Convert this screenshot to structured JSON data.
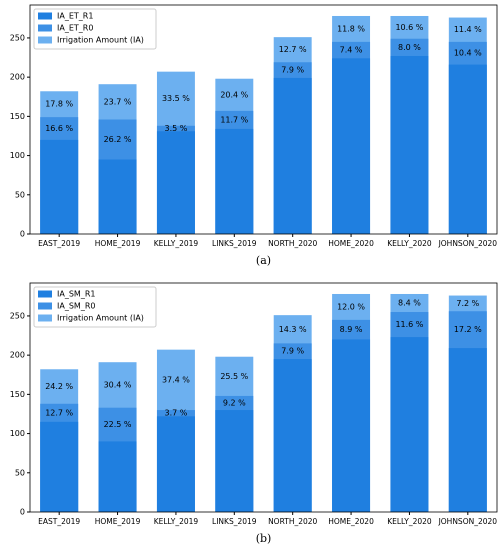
{
  "chart_data": [
    {
      "type": "bar",
      "caption": "(a)",
      "categories": [
        "EAST_2019",
        "HOME_2019",
        "KELLY_2019",
        "LINKS_2019",
        "NORTH_2020",
        "HOME_2020",
        "KELLY_2020",
        "JOHNSON_2020"
      ],
      "series": [
        {
          "name": "IA_ET_R1",
          "color": "#1f7fe0",
          "values": [
            120,
            95,
            131,
            134,
            199,
            224,
            227,
            216
          ]
        },
        {
          "name": "IA_ET_R0",
          "color": "#3d90e5",
          "values": [
            149,
            146,
            138,
            157,
            219,
            245,
            249,
            245
          ],
          "gap_labels": [
            "16.6 %",
            "26.2 %",
            "3.5 %",
            "11.7 %",
            "7.9 %",
            "7.4 %",
            "8.0 %",
            "10.4 %"
          ]
        },
        {
          "name": "Irrigation Amount (IA)",
          "color": "#6cb0f0",
          "values": [
            182,
            191,
            207,
            198,
            251,
            278,
            278,
            276
          ],
          "gap_labels": [
            "17.8 %",
            "23.7 %",
            "33.5 %",
            "20.4 %",
            "12.7 %",
            "11.8 %",
            "10.6 %",
            "11.4 %"
          ]
        }
      ],
      "ylim": [
        0,
        292
      ],
      "yticks": [
        0,
        50,
        100,
        150,
        200,
        250
      ],
      "legend": "upper left"
    },
    {
      "type": "bar",
      "caption": "(b)",
      "categories": [
        "EAST_2019",
        "HOME_2019",
        "KELLY_2019",
        "LINKS_2019",
        "NORTH_2020",
        "HOME_2020",
        "KELLY_2020",
        "JOHNSON_2020"
      ],
      "series": [
        {
          "name": "IA_SM_R1",
          "color": "#1f7fe0",
          "values": [
            115,
            90,
            122,
            130,
            195,
            220,
            223,
            209
          ]
        },
        {
          "name": "IA_SM_R0",
          "color": "#3d90e5",
          "values": [
            138,
            133,
            130,
            148,
            215,
            245,
            255,
            256
          ],
          "gap_labels": [
            "12.7 %",
            "22.5 %",
            "3.7 %",
            "9.2 %",
            "7.9 %",
            "8.9 %",
            "11.6 %",
            "17.2 %"
          ]
        },
        {
          "name": "Irrigation Amount (IA)",
          "color": "#6cb0f0",
          "values": [
            182,
            191,
            207,
            198,
            251,
            278,
            278,
            276
          ],
          "gap_labels": [
            "24.2 %",
            "30.4 %",
            "37.4 %",
            "25.5 %",
            "14.3 %",
            "12.0 %",
            "8.4 %",
            "7.2 %"
          ]
        }
      ],
      "ylim": [
        0,
        292
      ],
      "yticks": [
        0,
        50,
        100,
        150,
        200,
        250
      ],
      "legend": "upper left"
    }
  ]
}
